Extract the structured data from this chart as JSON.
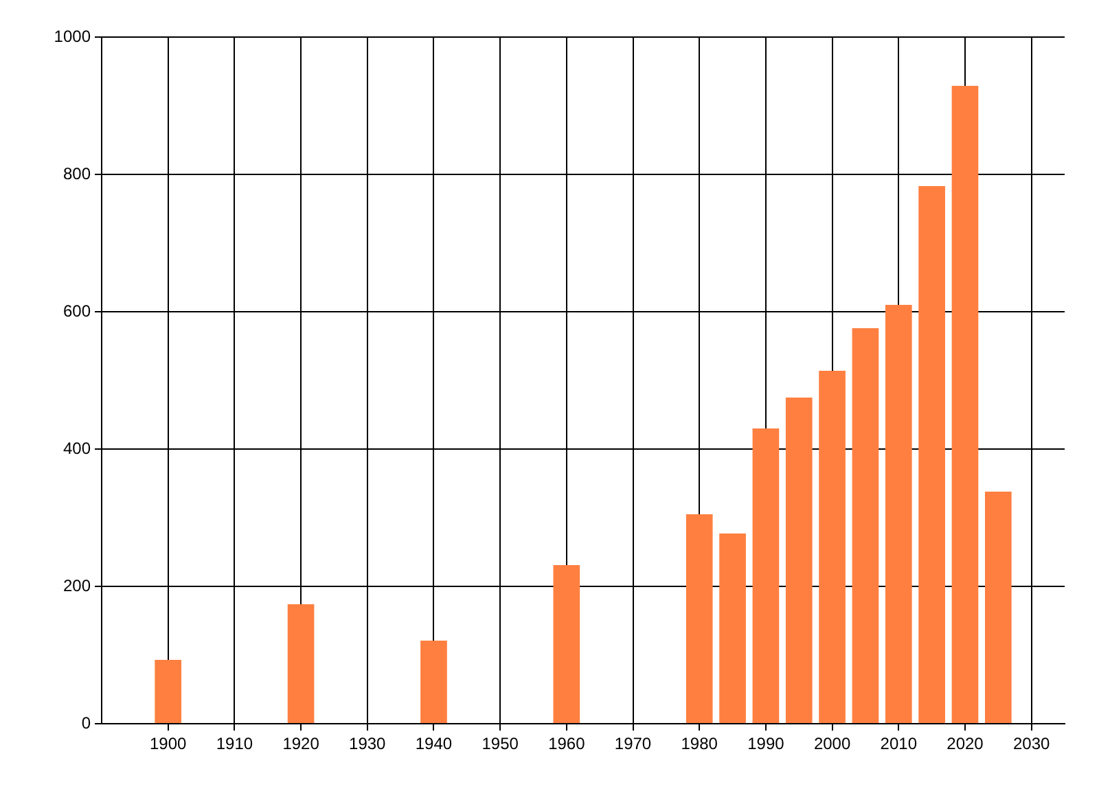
{
  "chart_data": {
    "type": "bar",
    "x": [
      1900,
      1920,
      1940,
      1960,
      1980,
      1985,
      1990,
      1995,
      2000,
      2005,
      2010,
      2015,
      2020,
      2025
    ],
    "values": [
      93,
      174,
      121,
      231,
      305,
      277,
      430,
      475,
      514,
      576,
      610,
      783,
      929,
      338
    ],
    "color": "#ff7f40",
    "xlim": [
      1890,
      2035
    ],
    "xticks": [
      1900,
      1910,
      1920,
      1930,
      1940,
      1950,
      1960,
      1970,
      1980,
      1990,
      2000,
      2010,
      2020,
      2030
    ],
    "ylim": [
      0,
      1000
    ],
    "yticks": [
      0,
      200,
      400,
      600,
      800,
      1000
    ],
    "grid": true
  }
}
